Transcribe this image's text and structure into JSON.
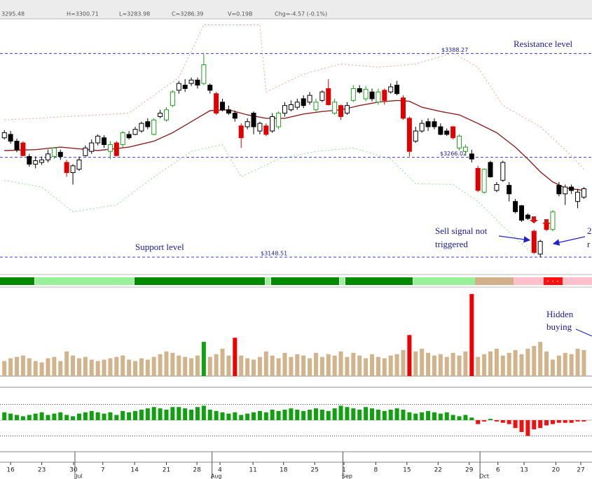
{
  "chart_data": {
    "type": "candlestick",
    "header": [
      "3295.48",
      "H=3300.71",
      "L=3283.98",
      "C=3286.39",
      "V=0.19B",
      "Chg=-4.57 (-0.1%)"
    ],
    "xlim": [
      -0.7,
      94.3
    ],
    "ylim": [
      3128,
      3429
    ],
    "candles": [
      [
        3289,
        3298,
        3287,
        3295
      ],
      [
        3293,
        3297,
        3282,
        3285
      ],
      [
        3285,
        3288,
        3272,
        3275
      ],
      [
        3283,
        3285,
        3267,
        3268
      ],
      [
        3267,
        3270,
        3255,
        3258
      ],
      [
        3258,
        3267,
        3253,
        3262
      ],
      [
        3260,
        3267,
        3257,
        3263
      ],
      [
        3263,
        3275,
        3260,
        3270
      ],
      [
        3267,
        3278,
        3264,
        3277
      ],
      [
        3272,
        3275,
        3263,
        3267
      ],
      [
        3260,
        3263,
        3243,
        3248
      ],
      [
        3248,
        3258,
        3234,
        3256
      ],
      [
        3252,
        3267,
        3250,
        3263
      ],
      [
        3268,
        3280,
        3267,
        3277
      ],
      [
        3273,
        3287,
        3270,
        3283
      ],
      [
        3283,
        3293,
        3280,
        3291
      ],
      [
        3289,
        3292,
        3277,
        3281
      ],
      [
        3273,
        3285,
        3264,
        3281
      ],
      [
        3283,
        3285,
        3267,
        3268
      ],
      [
        3281,
        3297,
        3278,
        3295
      ],
      [
        3293,
        3297,
        3287,
        3289
      ],
      [
        3293,
        3302,
        3292,
        3299
      ],
      [
        3297,
        3308,
        3295,
        3306
      ],
      [
        3308,
        3312,
        3299,
        3302
      ],
      [
        3293,
        3312,
        3292,
        3310
      ],
      [
        3314,
        3322,
        3312,
        3318
      ],
      [
        3310,
        3325,
        3308,
        3322
      ],
      [
        3327,
        3345,
        3325,
        3343
      ],
      [
        3345,
        3356,
        3341,
        3353
      ],
      [
        3351,
        3358,
        3343,
        3347
      ],
      [
        3353,
        3360,
        3350,
        3357
      ],
      [
        3357,
        3360,
        3347,
        3351
      ],
      [
        3353,
        3388.27,
        3351,
        3375
      ],
      [
        3351,
        3353,
        3341,
        3345
      ],
      [
        3341,
        3343,
        3316,
        3318
      ],
      [
        3331,
        3335,
        3320,
        3322
      ],
      [
        3322,
        3327,
        3316,
        3318
      ],
      [
        3318,
        3321,
        3308,
        3312
      ],
      [
        3303,
        3306,
        3277,
        3289
      ],
      [
        3302,
        3312,
        3299,
        3308
      ],
      [
        3318,
        3320,
        3293,
        3302
      ],
      [
        3297,
        3308,
        3293,
        3306
      ],
      [
        3303,
        3306,
        3291,
        3293
      ],
      [
        3297,
        3318,
        3295,
        3314
      ],
      [
        3302,
        3320,
        3299,
        3318
      ],
      [
        3318,
        3331,
        3314,
        3327
      ],
      [
        3322,
        3333,
        3320,
        3328
      ],
      [
        3325,
        3335,
        3322,
        3331
      ],
      [
        3335,
        3339,
        3324,
        3327
      ],
      [
        3331,
        3343,
        3328,
        3339
      ],
      [
        3322,
        3335,
        3320,
        3331
      ],
      [
        3333,
        3345,
        3331,
        3343
      ],
      [
        3347,
        3358,
        3327,
        3328
      ],
      [
        3318,
        3335,
        3316,
        3331
      ],
      [
        3327,
        3328,
        3310,
        3314
      ],
      [
        3318,
        3331,
        3316,
        3327
      ],
      [
        3333,
        3351,
        3331,
        3347
      ],
      [
        3347,
        3351,
        3341,
        3343
      ],
      [
        3335,
        3350,
        3332,
        3346
      ],
      [
        3343,
        3347,
        3332,
        3335
      ],
      [
        3331,
        3347,
        3328,
        3343
      ],
      [
        3345,
        3347,
        3328,
        3333
      ],
      [
        3343,
        3353,
        3341,
        3349
      ],
      [
        3351,
        3356,
        3339,
        3341
      ],
      [
        3336,
        3339,
        3310,
        3312
      ],
      [
        3312,
        3314,
        3267,
        3273
      ],
      [
        3285,
        3302,
        3283,
        3297
      ],
      [
        3297,
        3310,
        3295,
        3306
      ],
      [
        3308,
        3312,
        3297,
        3302
      ],
      [
        3308,
        3312,
        3299,
        3302
      ],
      [
        3302,
        3306,
        3292,
        3293
      ],
      [
        3297,
        3300,
        3291,
        3293
      ],
      [
        3302,
        3303,
        3287,
        3289
      ],
      [
        3277,
        3293,
        3274,
        3291
      ],
      [
        3273,
        3281,
        3268,
        3278
      ],
      [
        3270,
        3275,
        3260,
        3264
      ],
      [
        3253,
        3256,
        3225,
        3227
      ],
      [
        3225,
        3253,
        3223,
        3252
      ],
      [
        3260,
        3262,
        3242,
        3243
      ],
      [
        3227,
        3237,
        3225,
        3234
      ],
      [
        3239,
        3262,
        3237,
        3260
      ],
      [
        3233,
        3237,
        3214,
        3223
      ],
      [
        3214,
        3217,
        3200,
        3202
      ],
      [
        3209,
        3210,
        3190,
        3192
      ],
      [
        3198,
        3200,
        3192,
        3194
      ],
      [
        3179,
        3181,
        3152,
        3154
      ],
      [
        3152,
        3169,
        3148.51,
        3167
      ],
      [
        3187,
        3190,
        3179,
        3181
      ],
      [
        3181,
        3204,
        3179,
        3202
      ],
      [
        3233,
        3237,
        3220,
        3223
      ],
      [
        3223,
        3234,
        3210,
        3231
      ],
      [
        3231,
        3234,
        3223,
        3227
      ],
      [
        3214,
        3229,
        3206,
        3225
      ],
      [
        3219,
        3231,
        3217,
        3229
      ]
    ],
    "red_candles": [
      3,
      10,
      18,
      34,
      38,
      42,
      52,
      54,
      61,
      64,
      65,
      72,
      76,
      85,
      87
    ],
    "green_candles": [
      8,
      17,
      19,
      24,
      26,
      27,
      32,
      44,
      50,
      53,
      56,
      58,
      60,
      73,
      74,
      77,
      88
    ],
    "ma": {
      "color": "#8b2323",
      "x": [
        0,
        5,
        9,
        15,
        20,
        24,
        27,
        30,
        33,
        36,
        39,
        42,
        45,
        48,
        51,
        54,
        57,
        60,
        63,
        65,
        67,
        70,
        73,
        76,
        79,
        82,
        84,
        86,
        88,
        90,
        93
      ],
      "values": [
        3274,
        3275,
        3278,
        3274,
        3278,
        3285,
        3295,
        3308,
        3321,
        3322,
        3316,
        3312,
        3312,
        3317,
        3320,
        3322,
        3327,
        3331,
        3333,
        3332,
        3325,
        3320,
        3316,
        3306,
        3295,
        3278,
        3264,
        3249,
        3237,
        3230,
        3227
      ]
    },
    "upper_band": {
      "color": "#f2a0a0",
      "x": [
        0,
        10,
        20,
        28,
        32,
        41,
        42,
        48,
        54,
        60,
        66,
        72,
        76,
        80,
        86,
        91,
        93
      ],
      "values": [
        3310,
        3314,
        3318,
        3360,
        3422,
        3422,
        3343,
        3364,
        3376,
        3372,
        3376,
        3389,
        3372,
        3327,
        3302,
        3268,
        3252
      ]
    },
    "lower_band": {
      "color": "#8fe08f",
      "x": [
        0,
        6,
        11,
        18,
        24,
        30,
        35,
        38,
        44,
        50,
        56,
        62,
        66,
        72,
        76,
        80,
        85
      ],
      "values": [
        3239,
        3231,
        3202,
        3210,
        3243,
        3273,
        3281,
        3243,
        3264,
        3273,
        3277,
        3264,
        3235,
        3234,
        3214,
        3185,
        3151
      ]
    },
    "levels": [
      {
        "value": 3388.27,
        "label": "$3388.27"
      },
      {
        "value": 3266.02,
        "label": "$3266.02"
      },
      {
        "value": 3148.51,
        "label": "$3148.51"
      }
    ],
    "level_color": "#3a3ad0",
    "annotations": [
      "Resistance level",
      "Support level",
      "Sell signal not",
      "triggered",
      "2",
      "r",
      "Hidden",
      "buying"
    ],
    "volume": {
      "ylim": [
        0,
        0.65
      ],
      "color": "#d2b48c",
      "red": [
        37,
        65,
        75
      ],
      "green": [
        32
      ],
      "values": [
        0.11,
        0.13,
        0.14,
        0.15,
        0.13,
        0.11,
        0.1,
        0.13,
        0.14,
        0.11,
        0.18,
        0.15,
        0.13,
        0.14,
        0.12,
        0.11,
        0.12,
        0.13,
        0.14,
        0.15,
        0.12,
        0.11,
        0.13,
        0.12,
        0.14,
        0.16,
        0.18,
        0.17,
        0.15,
        0.14,
        0.13,
        0.15,
        0.25,
        0.14,
        0.16,
        0.2,
        0.15,
        0.28,
        0.15,
        0.13,
        0.12,
        0.14,
        0.18,
        0.15,
        0.13,
        0.17,
        0.14,
        0.16,
        0.15,
        0.13,
        0.17,
        0.14,
        0.16,
        0.15,
        0.18,
        0.14,
        0.17,
        0.15,
        0.13,
        0.16,
        0.14,
        0.13,
        0.15,
        0.16,
        0.19,
        0.3,
        0.18,
        0.2,
        0.17,
        0.15,
        0.16,
        0.14,
        0.17,
        0.15,
        0.18,
        0.6,
        0.14,
        0.16,
        0.18,
        0.2,
        0.15,
        0.17,
        0.19,
        0.16,
        0.2,
        0.22,
        0.25,
        0.18,
        0.12,
        0.15,
        0.17,
        0.16,
        0.2,
        0.19
      ]
    },
    "indicator": {
      "ylim": [
        -1.2,
        1.2
      ],
      "levels": [
        -0.6,
        0.6
      ],
      "values": [
        0.3,
        0.25,
        0.2,
        0.15,
        0.2,
        0.25,
        0.3,
        0.2,
        0.25,
        0.3,
        0.2,
        0.15,
        0.25,
        0.3,
        0.35,
        0.3,
        0.25,
        0.3,
        0.2,
        0.35,
        0.3,
        0.35,
        0.4,
        0.45,
        0.5,
        0.45,
        0.4,
        0.5,
        0.5,
        0.45,
        0.4,
        0.5,
        0.55,
        0.4,
        0.35,
        0.3,
        0.25,
        0.3,
        0.2,
        0.25,
        0.3,
        0.35,
        0.3,
        0.4,
        0.35,
        0.4,
        0.45,
        0.4,
        0.35,
        0.4,
        0.45,
        0.4,
        0.35,
        0.45,
        0.55,
        0.5,
        0.45,
        0.4,
        0.5,
        0.45,
        0.4,
        0.35,
        0.4,
        0.45,
        0.4,
        0.3,
        0.25,
        0.3,
        0.35,
        0.3,
        0.25,
        0.3,
        0.2,
        0.15,
        0.2,
        0.1,
        -0.15,
        -0.05,
        0.05,
        -0.05,
        -0.1,
        -0.15,
        -0.3,
        -0.45,
        -0.6,
        -0.35,
        -0.3,
        -0.2,
        -0.15,
        -0.1,
        -0.1,
        -0.1,
        -0.05,
        -0.05
      ]
    },
    "xticks": [
      {
        "value": 1,
        "label": "16"
      },
      {
        "value": 6,
        "label": "23"
      },
      {
        "value": 11.1,
        "label": "30"
      },
      {
        "value": 15.8,
        "label": "7"
      },
      {
        "value": 20.9,
        "label": "14"
      },
      {
        "value": 26,
        "label": "21"
      },
      {
        "value": 30.9,
        "label": "28"
      },
      {
        "value": 34.6,
        "label": "4"
      },
      {
        "value": 39.9,
        "label": "11"
      },
      {
        "value": 44.8,
        "label": "18"
      },
      {
        "value": 49.8,
        "label": "25"
      },
      {
        "value": 54.5,
        "label": "1"
      },
      {
        "value": 59.6,
        "label": "8"
      },
      {
        "value": 64.6,
        "label": "15"
      },
      {
        "value": 69.6,
        "label": "22"
      },
      {
        "value": 74.6,
        "label": "29"
      },
      {
        "value": 79.2,
        "label": "6"
      },
      {
        "value": 83.4,
        "label": "13"
      },
      {
        "value": 88.5,
        "label": "20"
      },
      {
        "value": 92.5,
        "label": "27"
      }
    ],
    "months": [
      {
        "value": 12,
        "label": "Jul"
      },
      {
        "value": 34,
        "label": "Aug"
      },
      {
        "value": 55,
        "label": "Sep"
      },
      {
        "value": 77,
        "label": "Oct"
      }
    ]
  }
}
